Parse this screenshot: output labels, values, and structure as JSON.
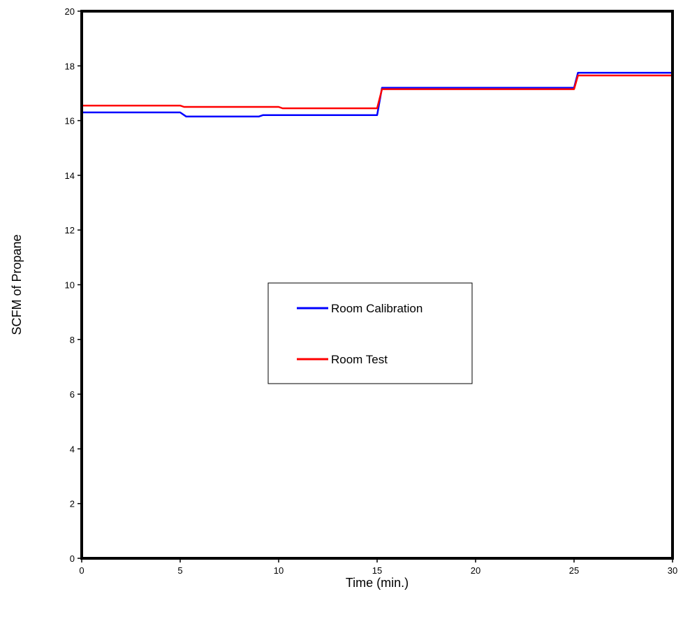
{
  "chart_data": {
    "type": "line",
    "title": "",
    "xlabel": "Time (min.)",
    "ylabel": "SCFM of Propane",
    "xlim": [
      0,
      30
    ],
    "ylim": [
      0,
      20
    ],
    "x_ticks": [
      "0",
      "5",
      "10",
      "15",
      "20",
      "25",
      "30"
    ],
    "y_ticks": [
      "0",
      "2",
      "4",
      "6",
      "8",
      "10",
      "12",
      "14",
      "16",
      "18",
      "20"
    ],
    "grid": false,
    "legend_position": "center",
    "series": [
      {
        "name": "Room Calibration",
        "color": "#0000ff",
        "x": [
          0,
          5.0,
          5.3,
          9.0,
          9.2,
          15.0,
          15.25,
          25.0,
          25.2,
          30
        ],
        "y": [
          16.3,
          16.3,
          16.15,
          16.15,
          16.2,
          16.2,
          17.2,
          17.2,
          17.75,
          17.75
        ]
      },
      {
        "name": "Room Test",
        "color": "#ff0000",
        "x": [
          0,
          5.0,
          5.2,
          10.0,
          10.2,
          15.0,
          15.25,
          25.0,
          25.2,
          30
        ],
        "y": [
          16.55,
          16.55,
          16.5,
          16.5,
          16.45,
          16.45,
          17.15,
          17.15,
          17.65,
          17.65
        ]
      }
    ]
  }
}
